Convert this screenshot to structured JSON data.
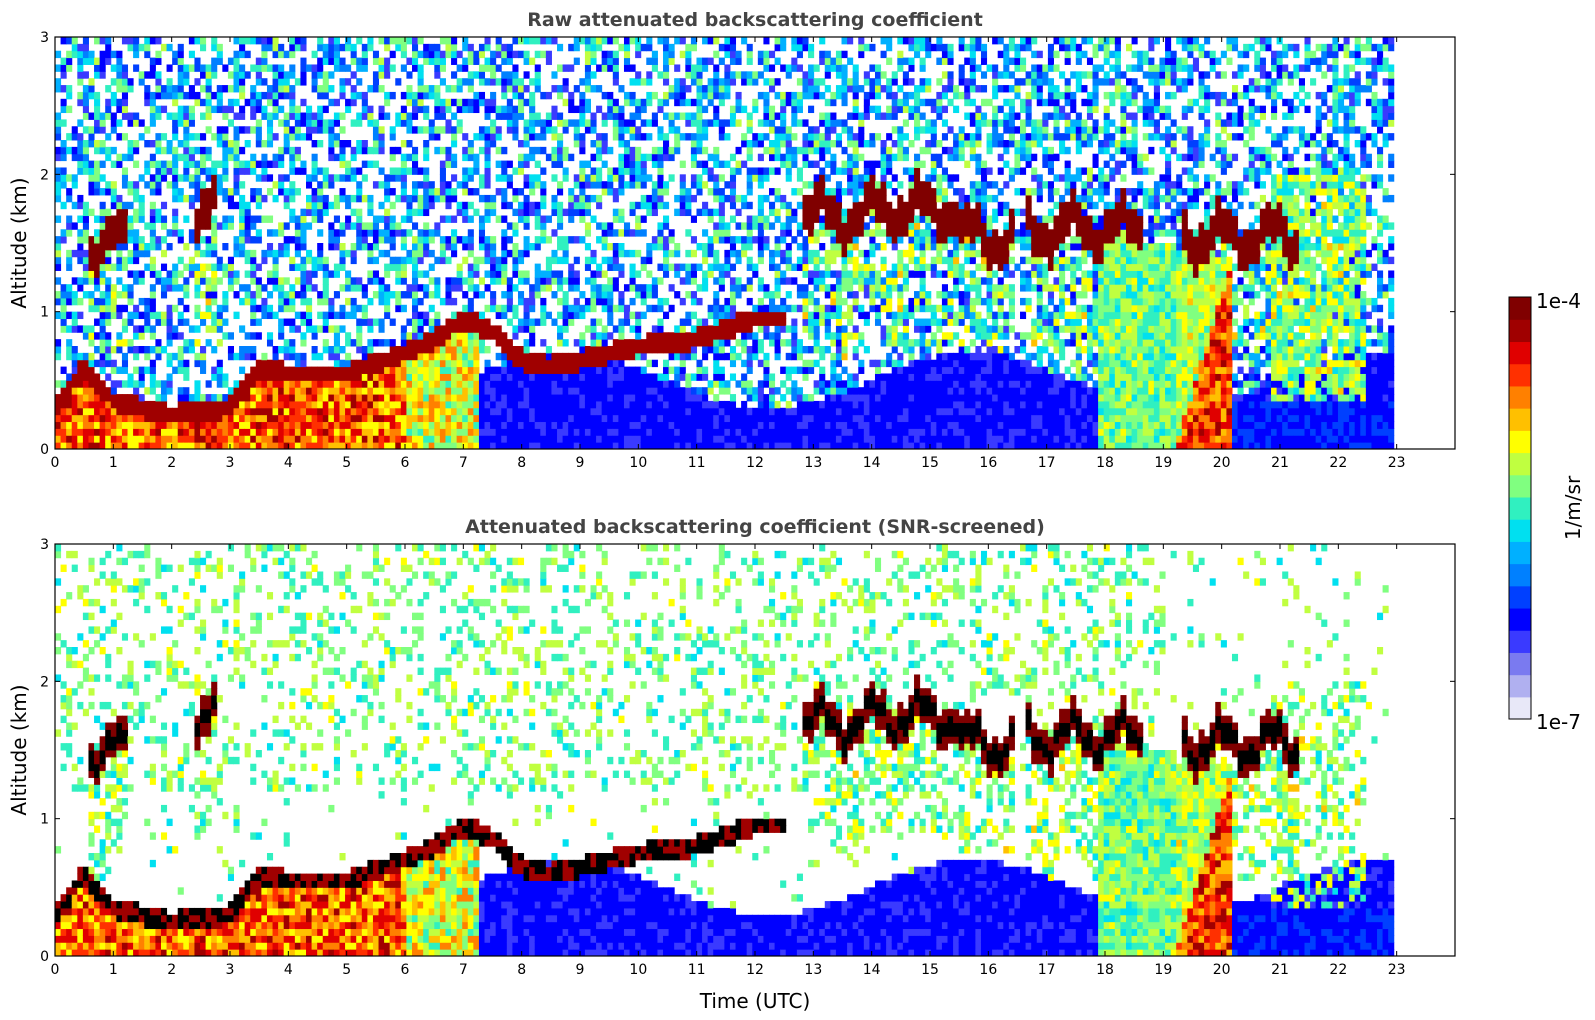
{
  "chart_data": [
    {
      "type": "heatmap",
      "title": "Raw attenuated backscattering coefficient",
      "ylabel": "Altitude (km)",
      "xlabel": "",
      "xlim": [
        0,
        24
      ],
      "ylim": [
        0,
        3
      ],
      "xticks": [
        0,
        1,
        2,
        3,
        4,
        5,
        6,
        7,
        8,
        9,
        10,
        11,
        12,
        13,
        14,
        15,
        16,
        17,
        18,
        19,
        20,
        21,
        22,
        23
      ],
      "yticks": [
        0,
        1,
        2,
        3
      ],
      "data_end_time": 22.95,
      "screened": false,
      "colorscale": "jet",
      "log_scale": true
    },
    {
      "type": "heatmap",
      "title": "Attenuated backscattering coefficient (SNR-screened)",
      "ylabel": "Altitude (km)",
      "xlabel": "Time (UTC)",
      "xlim": [
        0,
        24
      ],
      "ylim": [
        0,
        3
      ],
      "xticks": [
        0,
        1,
        2,
        3,
        4,
        5,
        6,
        7,
        8,
        9,
        10,
        11,
        12,
        13,
        14,
        15,
        16,
        17,
        18,
        19,
        20,
        21,
        22,
        23
      ],
      "yticks": [
        0,
        1,
        2,
        3
      ],
      "data_end_time": 22.95,
      "screened": true,
      "colorscale": "jet",
      "log_scale": true
    }
  ],
  "colorbar": {
    "max_label": "1e-4",
    "min_label": "1e-7",
    "unit_label": "1/m/sr",
    "colors": [
      "#e8e8f8",
      "#b0b0f0",
      "#7a7af0",
      "#3a3aff",
      "#0000ff",
      "#0040ff",
      "#0080ff",
      "#00b0ff",
      "#00e0f0",
      "#30f0c0",
      "#80ff80",
      "#c0ff40",
      "#ffff00",
      "#ffc000",
      "#ff8000",
      "#ff3000",
      "#e00000",
      "#a00000",
      "#800000"
    ]
  },
  "features": {
    "boundary_layer": [
      [
        0,
        0.3
      ],
      [
        0.5,
        0.6
      ],
      [
        1,
        0.35
      ],
      [
        2,
        0.25
      ],
      [
        3,
        0.3
      ],
      [
        3.5,
        0.6
      ],
      [
        4,
        0.55
      ],
      [
        5,
        0.55
      ],
      [
        6,
        0.7
      ],
      [
        6.5,
        0.8
      ],
      [
        7,
        0.95
      ],
      [
        7.5,
        0.85
      ],
      [
        8,
        0.65
      ],
      [
        8.5,
        0.6
      ],
      [
        9,
        0.65
      ],
      [
        10,
        0.75
      ],
      [
        11,
        0.8
      ],
      [
        12,
        0.95
      ]
    ],
    "cloud_layers": [
      {
        "start": 12.8,
        "end": 14.0,
        "alt": 1.7
      },
      {
        "start": 14.0,
        "end": 15.5,
        "alt": 1.75
      },
      {
        "start": 15.5,
        "end": 16.4,
        "alt": 1.55
      },
      {
        "start": 16.6,
        "end": 18.6,
        "alt": 1.6
      },
      {
        "start": 19.3,
        "end": 21.3,
        "alt": 1.55
      },
      {
        "start": 0.6,
        "end": 1.2,
        "alt": 1.5
      },
      {
        "start": 2.4,
        "end": 2.8,
        "alt": 1.75
      }
    ]
  }
}
